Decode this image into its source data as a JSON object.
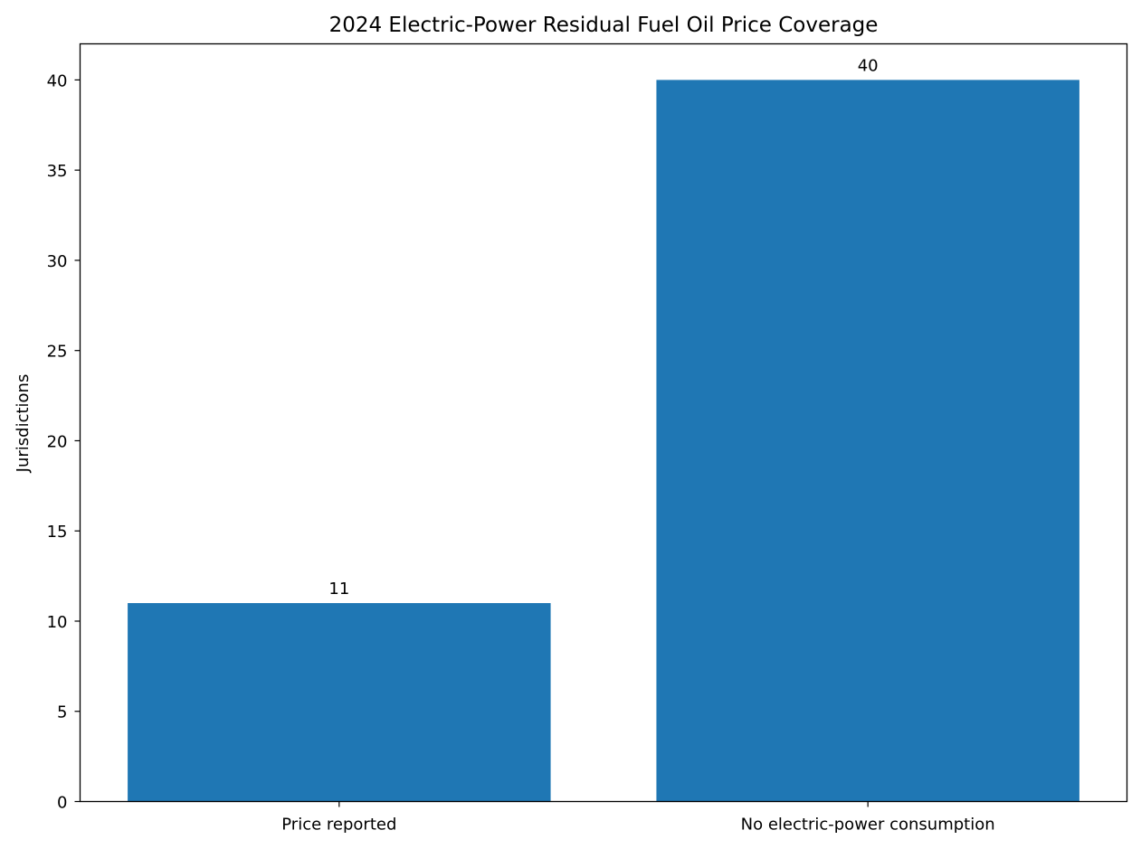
{
  "chart_data": {
    "type": "bar",
    "title": "2024 Electric-Power Residual Fuel Oil Price Coverage",
    "xlabel": "",
    "ylabel": "Jurisdictions",
    "categories": [
      "Price reported",
      "No electric-power consumption"
    ],
    "values": [
      11,
      40
    ],
    "data_labels": [
      "11",
      "40"
    ],
    "ylim": [
      0,
      42
    ],
    "yticks": [
      0,
      5,
      10,
      15,
      20,
      25,
      30,
      35,
      40
    ],
    "ytick_labels": [
      "0",
      "5",
      "10",
      "15",
      "20",
      "25",
      "30",
      "35",
      "40"
    ],
    "bar_color": "#1f77b4",
    "grid": false,
    "legend": "none"
  }
}
